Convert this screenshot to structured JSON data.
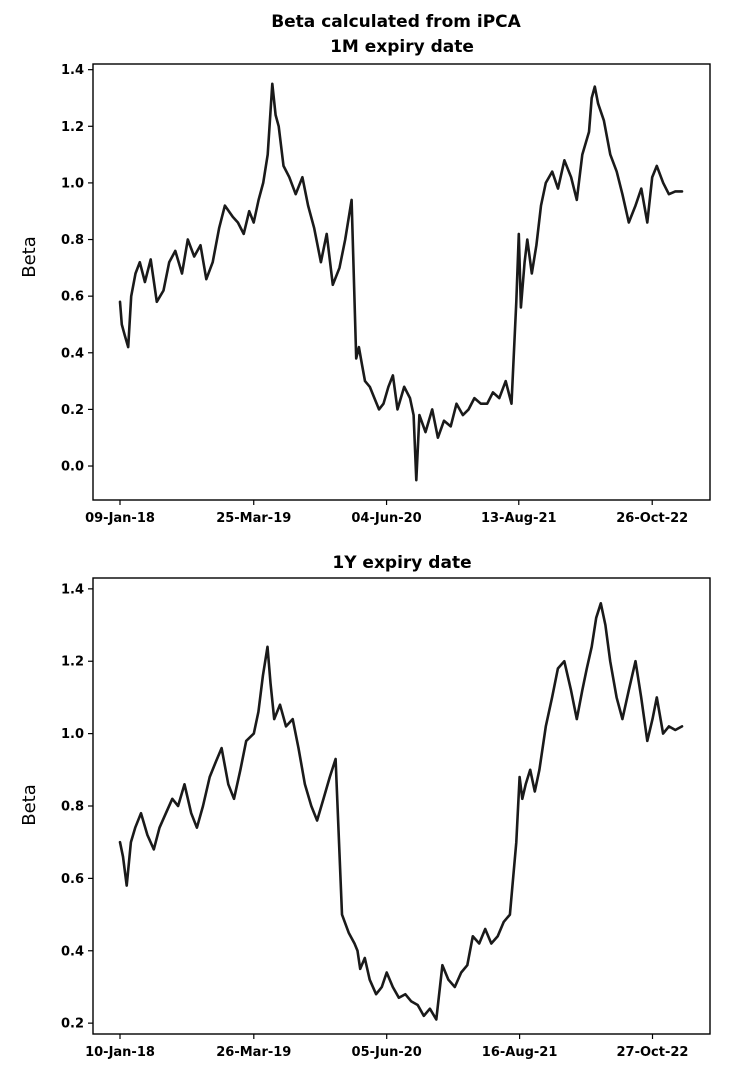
{
  "figure": {
    "suptitle": "Beta calculated from iPCA"
  },
  "chart_data": [
    {
      "type": "line",
      "title": "1M expiry date",
      "xlabel": "",
      "ylabel": "Beta",
      "ylim": [
        -0.12,
        1.42
      ],
      "yticks": [
        "0.0",
        "0.2",
        "0.4",
        "0.6",
        "0.8",
        "1.0",
        "1.2",
        "1.4"
      ],
      "xticks": [
        "09-Jan-18",
        "25-Mar-19",
        "04-Jun-20",
        "13-Aug-21",
        "26-Oct-22"
      ],
      "grid": false,
      "series": [
        {
          "x": [
            "2018-01-09",
            "2018-01-15",
            "2018-01-25",
            "2018-02-05",
            "2018-02-15",
            "2018-03-01",
            "2018-03-15",
            "2018-04-01",
            "2018-04-20",
            "2018-05-10",
            "2018-06-01",
            "2018-06-20",
            "2018-07-10",
            "2018-08-01",
            "2018-08-20",
            "2018-09-10",
            "2018-10-01",
            "2018-10-20",
            "2018-11-10",
            "2018-12-01",
            "2018-12-20",
            "2019-01-15",
            "2019-02-01",
            "2019-02-20",
            "2019-03-10",
            "2019-03-25",
            "2019-04-10",
            "2019-04-25",
            "2019-05-10",
            "2019-05-25",
            "2019-06-05",
            "2019-06-15",
            "2019-07-01",
            "2019-07-20",
            "2019-08-10",
            "2019-09-01",
            "2019-09-20",
            "2019-10-10",
            "2019-11-01",
            "2019-11-20",
            "2019-12-10",
            "2020-01-01",
            "2020-01-20",
            "2020-02-10",
            "2020-02-25",
            "2020-03-05",
            "2020-03-15",
            "2020-03-25",
            "2020-04-10",
            "2020-04-25",
            "2020-05-10",
            "2020-05-25",
            "2020-06-10",
            "2020-06-25",
            "2020-07-10",
            "2020-08-01",
            "2020-08-20",
            "2020-09-01",
            "2020-09-10",
            "2020-09-20",
            "2020-10-10",
            "2020-11-01",
            "2020-11-20",
            "2020-12-10",
            "2021-01-01",
            "2021-01-20",
            "2021-02-10",
            "2021-03-01",
            "2021-03-20",
            "2021-04-10",
            "2021-05-01",
            "2021-05-20",
            "2021-06-10",
            "2021-07-01",
            "2021-07-20",
            "2021-08-05",
            "2021-08-13",
            "2021-08-20",
            "2021-09-01",
            "2021-09-10",
            "2021-09-25",
            "2021-10-10",
            "2021-10-25",
            "2021-11-10",
            "2021-12-01",
            "2021-12-20",
            "2022-01-10",
            "2022-02-01",
            "2022-02-20",
            "2022-03-10",
            "2022-04-01",
            "2022-04-10",
            "2022-04-20",
            "2022-05-01",
            "2022-05-20",
            "2022-06-10",
            "2022-07-01",
            "2022-07-20",
            "2022-08-10",
            "2022-09-01",
            "2022-09-20",
            "2022-10-10",
            "2022-10-26",
            "2022-11-10",
            "2022-12-01",
            "2022-12-20",
            "2023-01-10",
            "2023-02-01"
          ],
          "y": [
            0.58,
            0.5,
            0.46,
            0.42,
            0.6,
            0.68,
            0.72,
            0.65,
            0.73,
            0.58,
            0.62,
            0.72,
            0.76,
            0.68,
            0.8,
            0.74,
            0.78,
            0.66,
            0.72,
            0.84,
            0.92,
            0.88,
            0.86,
            0.82,
            0.9,
            0.86,
            0.94,
            1.0,
            1.1,
            1.35,
            1.24,
            1.2,
            1.06,
            1.02,
            0.96,
            1.02,
            0.92,
            0.84,
            0.72,
            0.82,
            0.64,
            0.7,
            0.8,
            0.94,
            0.38,
            0.42,
            0.36,
            0.3,
            0.28,
            0.24,
            0.2,
            0.22,
            0.28,
            0.32,
            0.2,
            0.28,
            0.24,
            0.18,
            -0.05,
            0.18,
            0.12,
            0.2,
            0.1,
            0.16,
            0.14,
            0.22,
            0.18,
            0.2,
            0.24,
            0.22,
            0.22,
            0.26,
            0.24,
            0.3,
            0.22,
            0.58,
            0.82,
            0.56,
            0.72,
            0.8,
            0.68,
            0.78,
            0.92,
            1.0,
            1.04,
            0.98,
            1.08,
            1.02,
            0.94,
            1.1,
            1.18,
            1.3,
            1.34,
            1.28,
            1.22,
            1.1,
            1.04,
            0.96,
            0.86,
            0.92,
            0.98,
            0.86,
            1.02,
            1.06,
            1.0,
            0.96,
            0.97,
            0.97
          ]
        }
      ]
    },
    {
      "type": "line",
      "title": "1Y expiry date",
      "xlabel": "",
      "ylabel": "Beta",
      "ylim": [
        0.17,
        1.43
      ],
      "yticks": [
        "0.2",
        "0.4",
        "0.6",
        "0.8",
        "1.0",
        "1.2",
        "1.4"
      ],
      "xticks": [
        "10-Jan-18",
        "26-Mar-19",
        "05-Jun-20",
        "16-Aug-21",
        "27-Oct-22"
      ],
      "grid": false,
      "series": [
        {
          "x": [
            "2018-01-10",
            "2018-01-20",
            "2018-02-01",
            "2018-02-15",
            "2018-03-01",
            "2018-03-20",
            "2018-04-10",
            "2018-05-01",
            "2018-05-20",
            "2018-06-10",
            "2018-07-01",
            "2018-07-20",
            "2018-08-10",
            "2018-09-01",
            "2018-09-20",
            "2018-10-10",
            "2018-11-01",
            "2018-11-20",
            "2018-12-10",
            "2019-01-01",
            "2019-01-20",
            "2019-02-10",
            "2019-03-01",
            "2019-03-26",
            "2019-04-10",
            "2019-04-25",
            "2019-05-10",
            "2019-05-20",
            "2019-06-01",
            "2019-06-20",
            "2019-07-10",
            "2019-08-01",
            "2019-08-20",
            "2019-09-10",
            "2019-10-01",
            "2019-10-20",
            "2019-11-10",
            "2019-12-01",
            "2019-12-20",
            "2020-01-10",
            "2020-02-01",
            "2020-02-20",
            "2020-03-01",
            "2020-03-10",
            "2020-03-25",
            "2020-04-10",
            "2020-05-01",
            "2020-05-20",
            "2020-06-05",
            "2020-06-25",
            "2020-07-15",
            "2020-08-05",
            "2020-08-25",
            "2020-09-15",
            "2020-10-05",
            "2020-10-25",
            "2020-11-15",
            "2020-12-05",
            "2020-12-25",
            "2021-01-15",
            "2021-02-05",
            "2021-02-25",
            "2021-03-15",
            "2021-04-05",
            "2021-04-25",
            "2021-05-15",
            "2021-06-05",
            "2021-06-25",
            "2021-07-15",
            "2021-08-05",
            "2021-08-16",
            "2021-08-25",
            "2021-09-05",
            "2021-09-20",
            "2021-10-05",
            "2021-10-20",
            "2021-11-10",
            "2021-12-01",
            "2021-12-20",
            "2022-01-10",
            "2022-02-01",
            "2022-02-20",
            "2022-03-10",
            "2022-03-25",
            "2022-04-10",
            "2022-04-25",
            "2022-05-10",
            "2022-05-25",
            "2022-06-10",
            "2022-07-01",
            "2022-07-20",
            "2022-08-10",
            "2022-09-01",
            "2022-09-20",
            "2022-10-10",
            "2022-10-27",
            "2022-11-10",
            "2022-12-01",
            "2022-12-20",
            "2023-01-10",
            "2023-02-01"
          ],
          "y": [
            0.7,
            0.66,
            0.58,
            0.7,
            0.74,
            0.78,
            0.72,
            0.68,
            0.74,
            0.78,
            0.82,
            0.8,
            0.86,
            0.78,
            0.74,
            0.8,
            0.88,
            0.92,
            0.96,
            0.86,
            0.82,
            0.9,
            0.98,
            1.0,
            1.06,
            1.16,
            1.24,
            1.14,
            1.04,
            1.08,
            1.02,
            1.04,
            0.96,
            0.86,
            0.8,
            0.76,
            0.82,
            0.88,
            0.93,
            0.5,
            0.45,
            0.42,
            0.4,
            0.35,
            0.38,
            0.32,
            0.28,
            0.3,
            0.34,
            0.3,
            0.27,
            0.28,
            0.26,
            0.25,
            0.22,
            0.24,
            0.21,
            0.36,
            0.32,
            0.3,
            0.34,
            0.36,
            0.44,
            0.42,
            0.46,
            0.42,
            0.44,
            0.48,
            0.5,
            0.7,
            0.88,
            0.82,
            0.86,
            0.9,
            0.84,
            0.9,
            1.02,
            1.1,
            1.18,
            1.2,
            1.12,
            1.04,
            1.12,
            1.18,
            1.24,
            1.32,
            1.36,
            1.3,
            1.2,
            1.1,
            1.04,
            1.12,
            1.2,
            1.1,
            0.98,
            1.04,
            1.1,
            1.0,
            1.02,
            1.01,
            1.02
          ]
        }
      ]
    }
  ]
}
